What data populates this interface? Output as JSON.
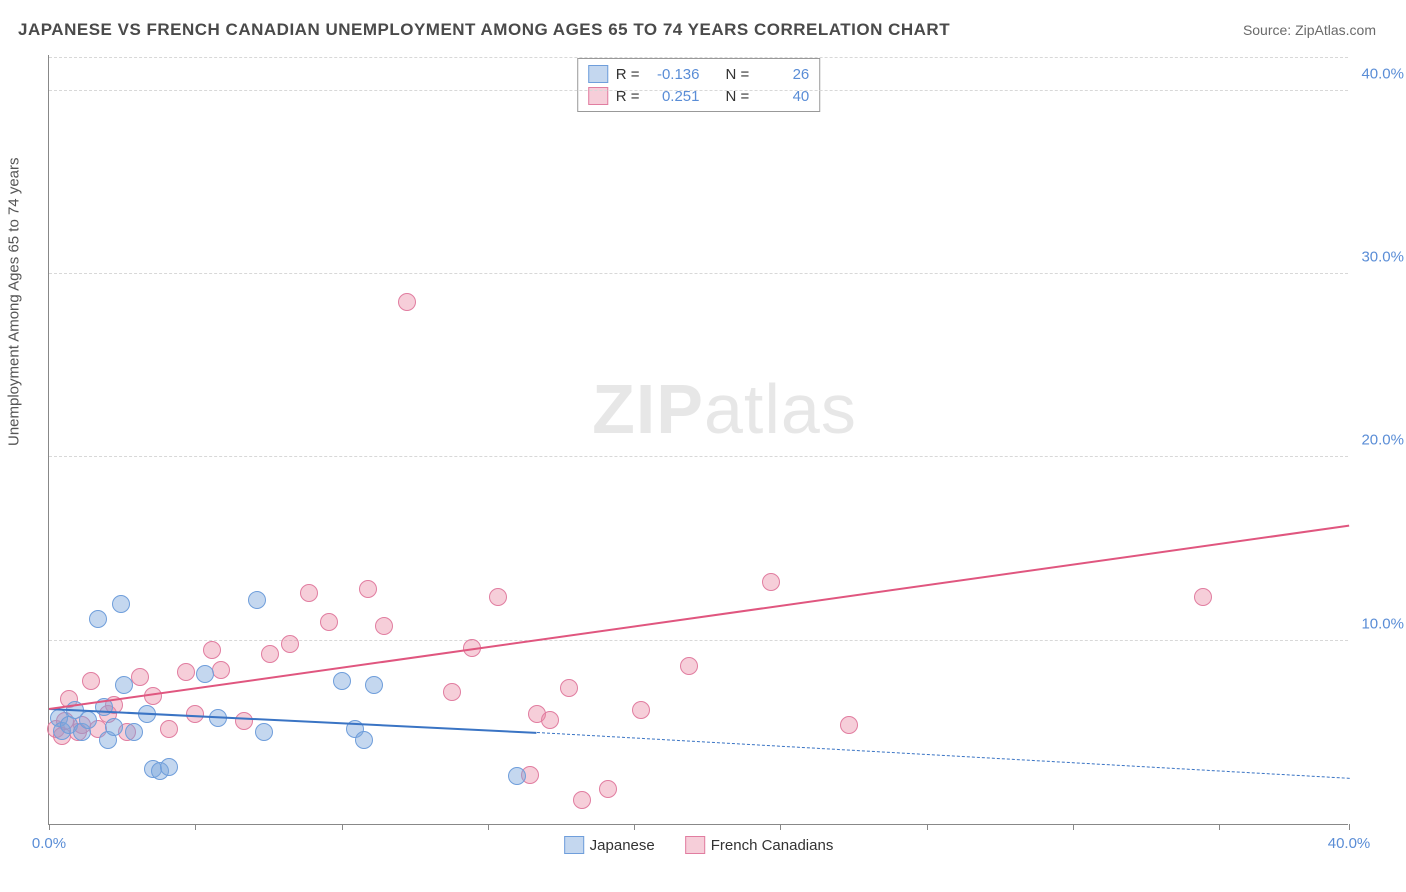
{
  "title": "JAPANESE VS FRENCH CANADIAN UNEMPLOYMENT AMONG AGES 65 TO 74 YEARS CORRELATION CHART",
  "source_label": "Source: ZipAtlas.com",
  "watermark_bold": "ZIP",
  "watermark_rest": "atlas",
  "y_axis_title": "Unemployment Among Ages 65 to 74 years",
  "chart": {
    "type": "scatter",
    "xlim": [
      0,
      40
    ],
    "ylim": [
      0,
      42
    ],
    "xtick_positions": [
      0,
      4.5,
      9,
      13.5,
      18,
      22.5,
      27,
      31.5,
      36,
      40
    ],
    "xtick_labels": {
      "0": "0.0%",
      "40": "40.0%"
    },
    "ytick_positions": [
      10,
      20,
      30,
      40
    ],
    "ytick_labels": {
      "10": "10.0%",
      "20": "20.0%",
      "30": "30.0%",
      "40": "40.0%"
    },
    "grid_color": "#d8d8d8",
    "axis_color": "#888888",
    "background_color": "#ffffff",
    "tick_label_color": "#5a8dd6",
    "tick_fontsize": 15,
    "title_fontsize": 17,
    "title_color": "#4a4a4a"
  },
  "series": {
    "japanese": {
      "label": "Japanese",
      "fill_color": "rgba(124,166,220,0.45)",
      "stroke_color": "#6f9edb",
      "marker_radius": 9,
      "marker_stroke_width": 1.2,
      "R": "-0.136",
      "N": "26",
      "points": [
        [
          0.3,
          5.8
        ],
        [
          0.4,
          5.1
        ],
        [
          0.6,
          5.4
        ],
        [
          0.8,
          6.2
        ],
        [
          1.0,
          5.0
        ],
        [
          1.2,
          5.7
        ],
        [
          1.5,
          11.2
        ],
        [
          2.2,
          12.0
        ],
        [
          1.7,
          6.4
        ],
        [
          1.8,
          4.6
        ],
        [
          2.0,
          5.3
        ],
        [
          2.3,
          7.6
        ],
        [
          2.6,
          5.0
        ],
        [
          3.0,
          6.0
        ],
        [
          3.2,
          3.0
        ],
        [
          3.4,
          2.9
        ],
        [
          3.7,
          3.1
        ],
        [
          4.8,
          8.2
        ],
        [
          5.2,
          5.8
        ],
        [
          6.4,
          12.2
        ],
        [
          6.6,
          5.0
        ],
        [
          9.0,
          7.8
        ],
        [
          9.4,
          5.2
        ],
        [
          9.7,
          4.6
        ],
        [
          10.0,
          7.6
        ],
        [
          14.4,
          2.6
        ]
      ],
      "trend": {
        "x1": 0,
        "y1": 6.4,
        "x2": 15,
        "y2": 5.1,
        "dash_to_x": 40,
        "dash_to_y": 2.6,
        "solid_width": 2.8,
        "dash_width": 1.4,
        "color": "#3a74c4"
      }
    },
    "french": {
      "label": "French Canadians",
      "fill_color": "rgba(233,132,160,0.40)",
      "stroke_color": "#e17da0",
      "marker_radius": 9,
      "marker_stroke_width": 1.2,
      "R": "0.251",
      "N": "40",
      "points": [
        [
          0.2,
          5.2
        ],
        [
          0.4,
          4.8
        ],
        [
          0.5,
          5.6
        ],
        [
          0.6,
          6.8
        ],
        [
          0.9,
          5.0
        ],
        [
          1.0,
          5.4
        ],
        [
          1.3,
          7.8
        ],
        [
          1.5,
          5.2
        ],
        [
          1.8,
          6.0
        ],
        [
          2.0,
          6.5
        ],
        [
          2.4,
          5.0
        ],
        [
          2.8,
          8.0
        ],
        [
          3.2,
          7.0
        ],
        [
          3.7,
          5.2
        ],
        [
          4.2,
          8.3
        ],
        [
          4.5,
          6.0
        ],
        [
          5.0,
          9.5
        ],
        [
          5.3,
          8.4
        ],
        [
          6.0,
          5.6
        ],
        [
          6.8,
          9.3
        ],
        [
          7.4,
          9.8
        ],
        [
          8.0,
          12.6
        ],
        [
          8.6,
          11.0
        ],
        [
          9.8,
          12.8
        ],
        [
          10.3,
          10.8
        ],
        [
          11.0,
          28.5
        ],
        [
          12.4,
          7.2
        ],
        [
          13.0,
          9.6
        ],
        [
          13.8,
          12.4
        ],
        [
          14.8,
          2.7
        ],
        [
          15.0,
          6.0
        ],
        [
          15.4,
          5.7
        ],
        [
          16.0,
          7.4
        ],
        [
          16.4,
          1.3
        ],
        [
          17.2,
          1.9
        ],
        [
          18.2,
          6.2
        ],
        [
          19.7,
          8.6
        ],
        [
          22.2,
          13.2
        ],
        [
          24.6,
          5.4
        ],
        [
          35.5,
          12.4
        ]
      ],
      "trend": {
        "x1": 0,
        "y1": 6.4,
        "x2": 40,
        "y2": 16.4,
        "solid_width": 2.8,
        "color": "#e0567f"
      }
    }
  },
  "stats_box": {
    "R_label": "R =",
    "N_label": "N ="
  },
  "legend": {
    "items": [
      "japanese",
      "french"
    ]
  }
}
